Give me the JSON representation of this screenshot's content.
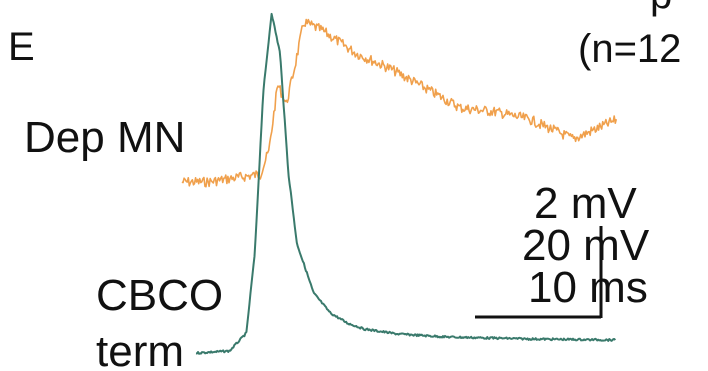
{
  "panel_label": "E",
  "count_label": "(n=12",
  "corner_fragment": "p",
  "labels": {
    "dep_mn": "Dep MN",
    "cbco_line1": "CBCO",
    "cbco_line2": "term"
  },
  "scale_bars": {
    "dep_mn_amplitude": "2 mV",
    "cbco_amplitude": "20 mV",
    "time": "10 ms"
  },
  "colors": {
    "dep_mn_trace": "#f0a04c",
    "cbco_trace": "#3a7a6c",
    "scale_bar": "#111111"
  },
  "chart_data": {
    "type": "line",
    "title": "",
    "xlabel": "",
    "ylabel": "",
    "series": [
      {
        "name": "Dep MN",
        "x": [
          0,
          3,
          6,
          9,
          10,
          11,
          12,
          13,
          14,
          15,
          16,
          18,
          20,
          24,
          28,
          32,
          36,
          40,
          45,
          50
        ],
        "y": [
          0.0,
          0.0,
          0.1,
          0.2,
          0.8,
          2.5,
          2.0,
          3.0,
          4.1,
          4.0,
          3.9,
          3.6,
          3.3,
          2.9,
          2.4,
          1.9,
          1.8,
          1.6,
          1.1,
          1.6
        ]
      },
      {
        "name": "CBCO term",
        "x": [
          0,
          4,
          6,
          7,
          8,
          9,
          10,
          11,
          12,
          14,
          16,
          18,
          20,
          24,
          30,
          40,
          50
        ],
        "y": [
          0.0,
          0.2,
          2,
          10,
          26,
          34,
          30,
          18,
          11,
          6,
          4,
          3,
          2.4,
          1.9,
          1.6,
          1.4,
          1.3
        ]
      }
    ]
  }
}
